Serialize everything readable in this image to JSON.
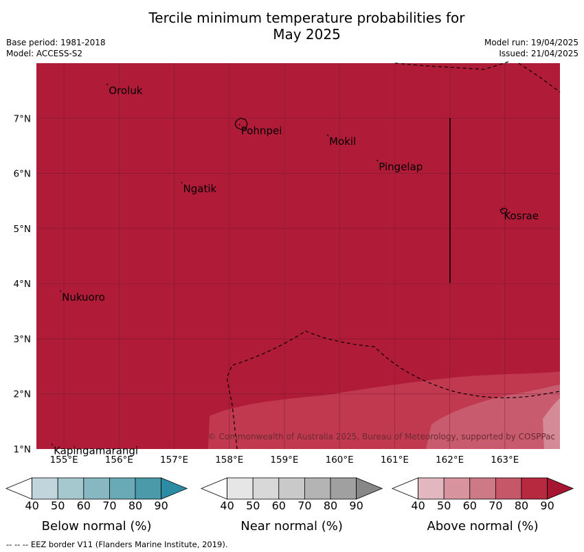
{
  "header": {
    "title_line1": "Tercile minimum temperature probabilities for",
    "title_line2": "May 2025",
    "base_period": "Base period: 1981-2018",
    "model": "Model: ACCESS-S2",
    "model_run": "Model run: 19/04/2025",
    "issued": "Issued: 21/04/2025"
  },
  "map": {
    "lon_range": [
      154.5,
      164.0
    ],
    "lat_range": [
      1.0,
      8.0
    ],
    "background_color": "#b01c38",
    "x_ticks": [
      "155°E",
      "156°E",
      "157°E",
      "158°E",
      "159°E",
      "160°E",
      "161°E",
      "162°E",
      "163°E"
    ],
    "y_ticks": [
      "1°N",
      "2°N",
      "3°N",
      "4°N",
      "5°N",
      "6°N",
      "7°N"
    ],
    "places": [
      {
        "name": "Oroluk",
        "lon": 155.8,
        "lat": 7.6
      },
      {
        "name": "Pohnpei",
        "lon": 158.2,
        "lat": 6.87
      },
      {
        "name": "Mokil",
        "lon": 159.8,
        "lat": 6.68
      },
      {
        "name": "Pingelap",
        "lon": 160.7,
        "lat": 6.22
      },
      {
        "name": "Ngatik",
        "lon": 157.15,
        "lat": 5.82
      },
      {
        "name": "Kosrae",
        "lon": 162.97,
        "lat": 5.33
      },
      {
        "name": "Nukuoro",
        "lon": 154.95,
        "lat": 3.85
      },
      {
        "name": "Kapingamarangi",
        "lon": 154.8,
        "lat": 1.07
      }
    ],
    "copyright": "© Commonwealth of Australia 2025, Bureau of Meteorology, supported by COSPPac"
  },
  "colorbars": [
    {
      "title": "Below normal (%)",
      "labels": [
        "40",
        "50",
        "60",
        "70",
        "80",
        "90"
      ],
      "colors": [
        "#ffffff",
        "#c0d6dc",
        "#a5c8cf",
        "#87b8c2",
        "#69aab6",
        "#4a9aaa",
        "#2b8ca3"
      ]
    },
    {
      "title": "Near normal (%)",
      "labels": [
        "40",
        "50",
        "60",
        "70",
        "80",
        "90"
      ],
      "colors": [
        "#ffffff",
        "#e6e6e6",
        "#d8d8d8",
        "#c9c9c9",
        "#b4b4b4",
        "#a0a0a0",
        "#878787"
      ]
    },
    {
      "title": "Above normal (%)",
      "labels": [
        "40",
        "50",
        "60",
        "70",
        "80",
        "90"
      ],
      "colors": [
        "#ffffff",
        "#e3b7bf",
        "#d7949f",
        "#cd7a86",
        "#c55769",
        "#b7293f",
        "#a71630"
      ]
    }
  ],
  "footer": "--  --  -- EEZ border V11 (Flanders Marine Institute, 2019)."
}
